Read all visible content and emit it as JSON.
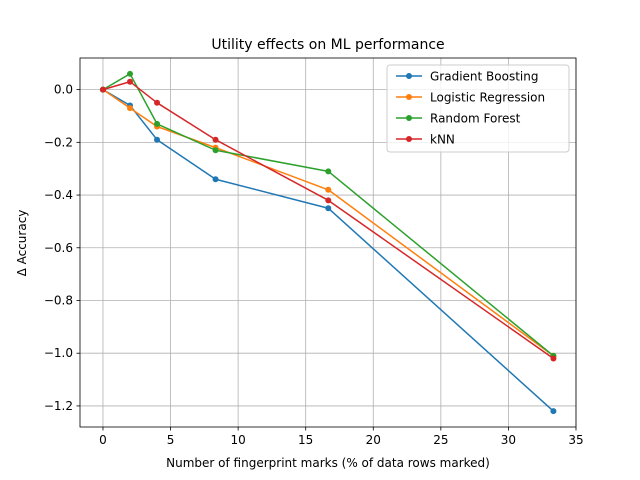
{
  "chart_data": {
    "type": "line",
    "title": "Utility effects on ML performance",
    "xlabel": "Number of fingerprint marks (% of data rows marked)",
    "ylabel": "Δ Accuracy",
    "xlim": [
      -1.7,
      35
    ],
    "ylim": [
      -1.28,
      0.12
    ],
    "xticks": [
      0,
      5,
      10,
      15,
      20,
      25,
      30,
      35
    ],
    "xtick_labels": [
      "0",
      "5",
      "10",
      "15",
      "20",
      "25",
      "30",
      "35"
    ],
    "yticks": [
      0.0,
      -0.2,
      -0.4,
      -0.6,
      -0.8,
      -1.0,
      -1.2
    ],
    "ytick_labels": [
      "0.0",
      "−0.2",
      "−0.4",
      "−0.6",
      "−0.8",
      "−1.0",
      "−1.2"
    ],
    "grid": true,
    "legend_position": "top-right",
    "x": [
      0,
      2,
      4,
      8.33,
      16.67,
      33.33
    ],
    "series": [
      {
        "name": "Gradient Boosting",
        "color": "#1f77b4",
        "values": [
          0.0,
          -0.06,
          -0.19,
          -0.34,
          -0.45,
          -1.22
        ]
      },
      {
        "name": "Logistic Regression",
        "color": "#ff7f0e",
        "values": [
          0.0,
          -0.07,
          -0.14,
          -0.22,
          -0.38,
          -1.01
        ]
      },
      {
        "name": "Random Forest",
        "color": "#2ca02c",
        "values": [
          0.0,
          0.06,
          -0.13,
          -0.23,
          -0.31,
          -1.01
        ]
      },
      {
        "name": "kNN",
        "color": "#d62728",
        "values": [
          0.0,
          0.03,
          -0.05,
          -0.19,
          -0.42,
          -1.02
        ]
      }
    ]
  }
}
